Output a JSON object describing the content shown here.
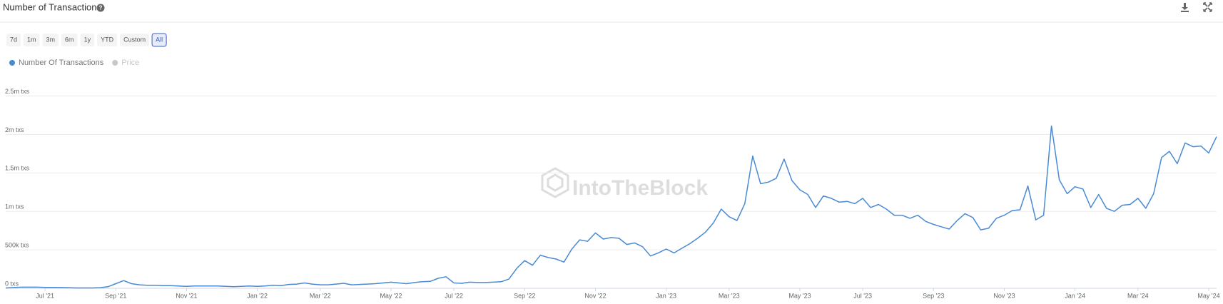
{
  "header": {
    "title": "Number of Transactions",
    "ranges": [
      "7d",
      "1m",
      "3m",
      "6m",
      "1y",
      "YTD",
      "Custom",
      "All"
    ],
    "active_range": 7
  },
  "chart_data": {
    "type": "line",
    "watermark": "IntoTheBlock",
    "categories": [
      null,
      null,
      null,
      null,
      null,
      "Jul '21",
      null,
      null,
      null,
      null,
      null,
      null,
      null,
      null,
      "Sep '21",
      null,
      null,
      null,
      null,
      null,
      null,
      null,
      null,
      "Nov '21",
      null,
      null,
      null,
      null,
      null,
      null,
      null,
      null,
      "Jan '22",
      null,
      null,
      null,
      null,
      null,
      null,
      null,
      "Mar '22",
      null,
      null,
      null,
      null,
      null,
      null,
      null,
      null,
      "May '22",
      null,
      null,
      null,
      null,
      null,
      null,
      null,
      "Jul '22",
      null,
      null,
      null,
      null,
      null,
      null,
      null,
      null,
      "Sep '22",
      null,
      null,
      null,
      null,
      null,
      null,
      null,
      null,
      "Nov '22",
      null,
      null,
      null,
      null,
      null,
      null,
      null,
      null,
      "Jan '23",
      null,
      null,
      null,
      null,
      null,
      null,
      null,
      "Mar '23",
      null,
      null,
      null,
      null,
      null,
      null,
      null,
      null,
      "May '23",
      null,
      null,
      null,
      null,
      null,
      null,
      null,
      "Jul '23",
      null,
      null,
      null,
      null,
      null,
      null,
      null,
      null,
      "Sep '23",
      null,
      null,
      null,
      null,
      null,
      null,
      null,
      null,
      "Nov '23",
      null,
      null,
      null,
      null,
      null,
      null,
      null,
      null,
      "Jan '24",
      null,
      null,
      null,
      null,
      null,
      null,
      null,
      "Mar '24",
      null,
      null,
      null,
      null,
      null,
      null,
      null,
      null,
      "May '24",
      null
    ],
    "series": [
      {
        "name": "Number Of Transactions",
        "color": "#4a8ad4",
        "values": [
          5000,
          10000,
          15000,
          15000,
          15000,
          12000,
          12000,
          10000,
          8000,
          5000,
          5000,
          5000,
          8000,
          20000,
          60000,
          100000,
          60000,
          45000,
          40000,
          40000,
          35000,
          35000,
          30000,
          25000,
          30000,
          30000,
          30000,
          30000,
          25000,
          20000,
          25000,
          30000,
          25000,
          30000,
          40000,
          35000,
          50000,
          55000,
          70000,
          55000,
          45000,
          45000,
          55000,
          65000,
          45000,
          50000,
          55000,
          60000,
          70000,
          80000,
          70000,
          60000,
          75000,
          85000,
          90000,
          130000,
          150000,
          70000,
          65000,
          80000,
          75000,
          75000,
          80000,
          85000,
          120000,
          260000,
          360000,
          300000,
          430000,
          400000,
          380000,
          340000,
          510000,
          630000,
          610000,
          720000,
          640000,
          660000,
          650000,
          570000,
          590000,
          540000,
          420000,
          460000,
          510000,
          460000,
          520000,
          580000,
          650000,
          730000,
          850000,
          1030000,
          930000,
          880000,
          1100000,
          1720000,
          1360000,
          1380000,
          1430000,
          1680000,
          1400000,
          1280000,
          1220000,
          1050000,
          1200000,
          1170000,
          1120000,
          1130000,
          1100000,
          1170000,
          1050000,
          1090000,
          1030000,
          950000,
          950000,
          910000,
          950000,
          870000,
          830000,
          800000,
          770000,
          880000,
          970000,
          920000,
          760000,
          780000,
          910000,
          950000,
          1010000,
          1020000,
          1330000,
          890000,
          950000,
          2110000,
          1410000,
          1230000,
          1320000,
          1290000,
          1050000,
          1220000,
          1040000,
          1000000,
          1080000,
          1090000,
          1170000,
          1040000,
          1230000,
          1700000,
          1780000,
          1620000,
          1890000,
          1840000,
          1850000,
          1760000,
          1970000
        ]
      }
    ],
    "hidden_series": [
      {
        "name": "Price",
        "color": "#c8c8c8"
      }
    ],
    "ylim": [
      0,
      2500000
    ],
    "yticks": [
      {
        "value": 0,
        "label": "0 txs"
      },
      {
        "value": 500000,
        "label": "500k txs"
      },
      {
        "value": 1000000,
        "label": "1m txs"
      },
      {
        "value": 1500000,
        "label": "1.5m txs"
      },
      {
        "value": 2000000,
        "label": "2m txs"
      },
      {
        "value": 2500000,
        "label": "2.5m txs"
      }
    ],
    "grid": true
  }
}
